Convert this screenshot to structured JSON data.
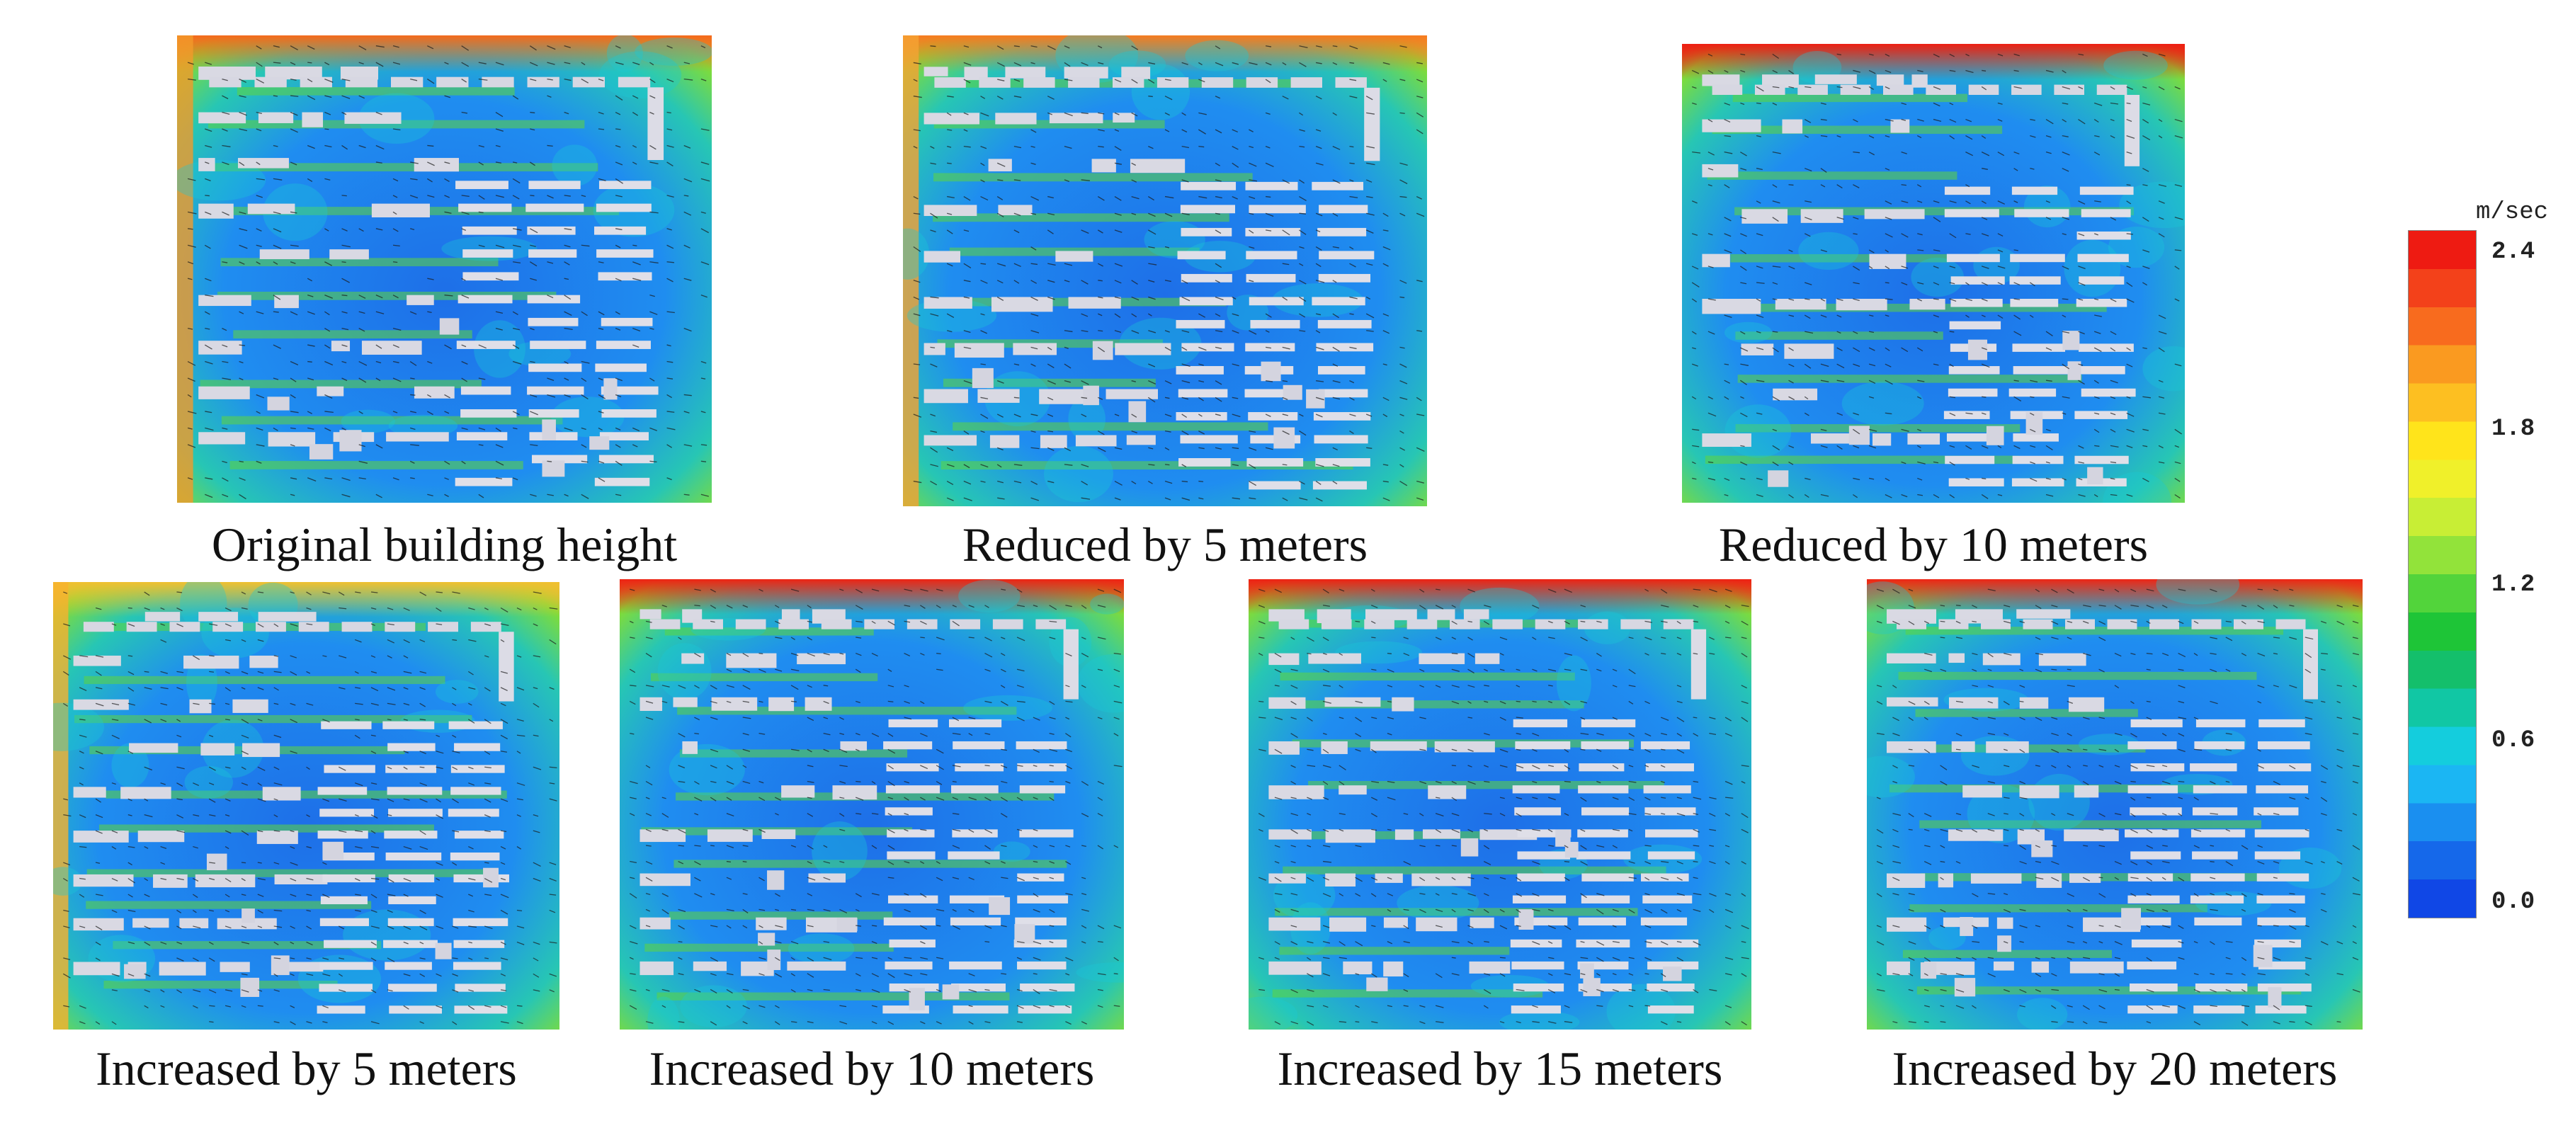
{
  "panels": [
    {
      "caption": "Original building height"
    },
    {
      "caption": "Reduced by 5 meters"
    },
    {
      "caption": "Reduced by 10 meters"
    },
    {
      "caption": "Increased by 5 meters"
    },
    {
      "caption": "Increased by 10 meters"
    },
    {
      "caption": "Increased by 15 meters"
    },
    {
      "caption": "Increased by 20 meters"
    }
  ],
  "legend": {
    "unit": "m/sec",
    "ticks": [
      "2.4",
      "1.8",
      "1.2",
      "0.6",
      "0.0"
    ],
    "colors": [
      "#ee1b12",
      "#f3411a",
      "#f86b1e",
      "#fa9a20",
      "#fdbf21",
      "#ffe41b",
      "#f0f02a",
      "#c8ee35",
      "#92e33a",
      "#52d43b",
      "#1ec537",
      "#14bf6b",
      "#11c7a4",
      "#14cddd",
      "#1bb6f3",
      "#1a8ff0",
      "#1568ea",
      "#1047e6"
    ]
  }
}
